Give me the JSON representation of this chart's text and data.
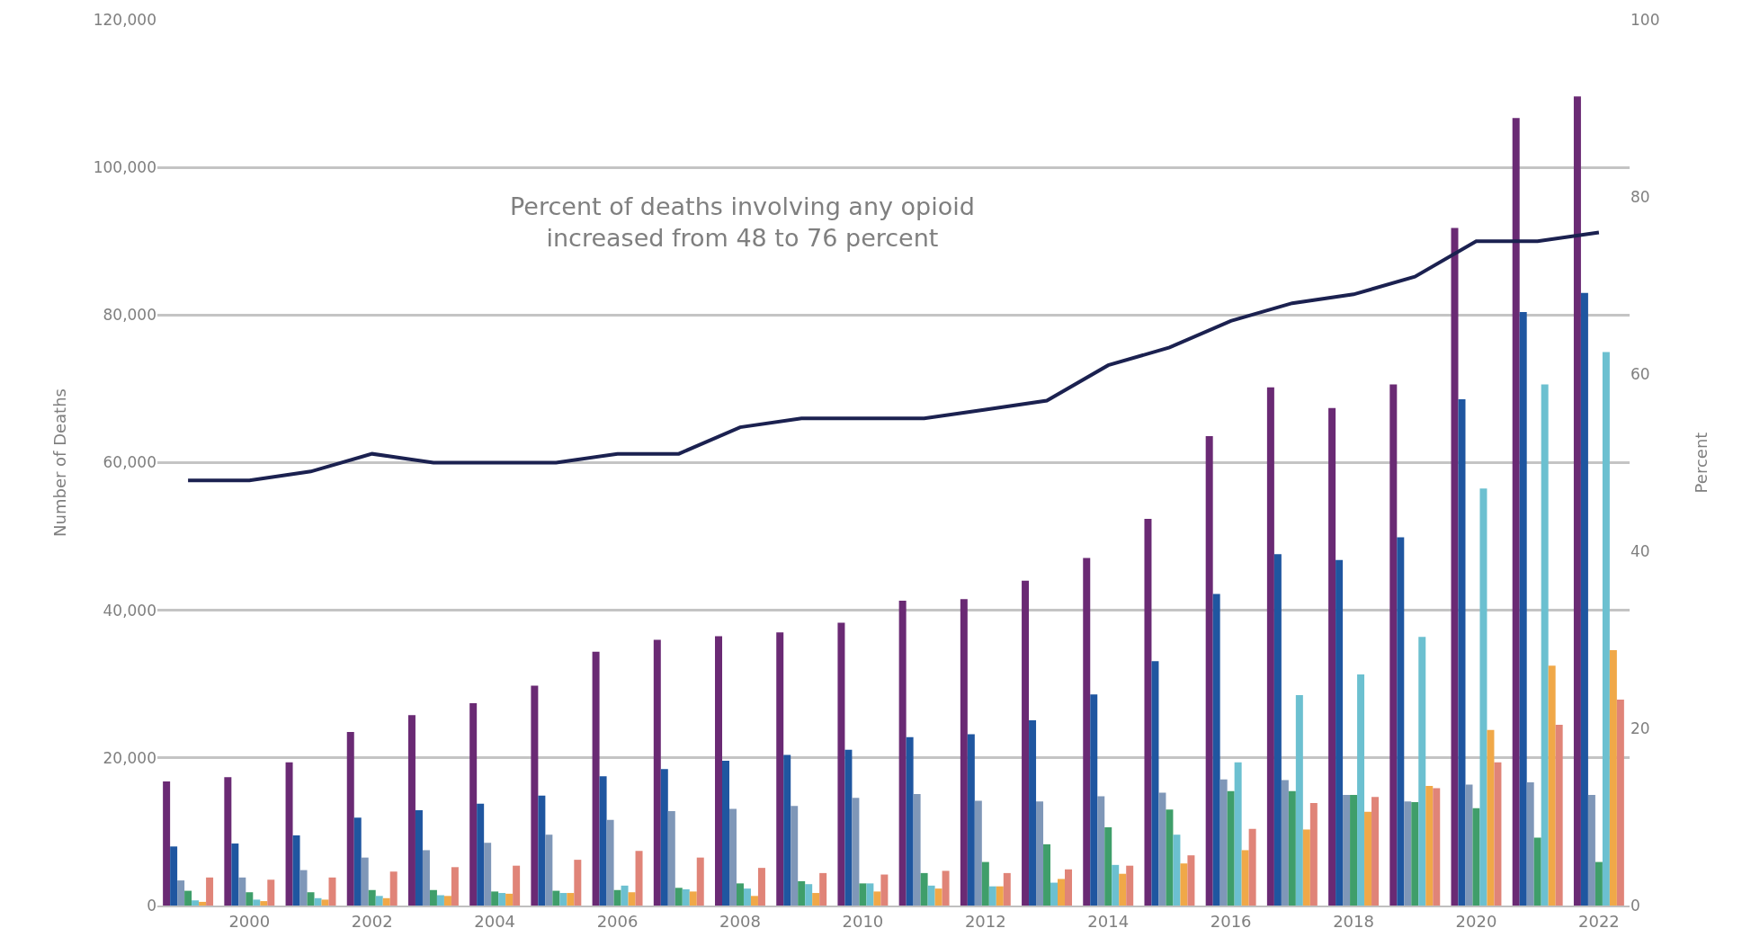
{
  "chart_data": {
    "type": "bar",
    "ylabel": "Number of Deaths",
    "y2label": "Percent",
    "annotations": [
      "Percent of deaths involving any opioid\nincreased from 48 to 76 percent"
    ],
    "x": [
      1999,
      2000,
      2001,
      2002,
      2003,
      2004,
      2005,
      2006,
      2007,
      2008,
      2009,
      2010,
      2011,
      2012,
      2013,
      2014,
      2015,
      2016,
      2017,
      2018,
      2019,
      2020,
      2021,
      2022
    ],
    "xlim": [
      1998.5,
      2022.5
    ],
    "xticks": [
      2000,
      2002,
      2004,
      2006,
      2008,
      2010,
      2012,
      2014,
      2016,
      2018,
      2020,
      2022
    ],
    "ylim": [
      0,
      120000
    ],
    "yticks": [
      0,
      {
        "value": 20000,
        "label": "20,000"
      },
      {
        "value": 40000,
        "label": "40,000"
      },
      {
        "value": 60000,
        "label": "60,000"
      },
      {
        "value": 80000,
        "label": "80,000"
      },
      {
        "value": 100000,
        "label": "100,000"
      },
      {
        "value": 120000,
        "label": "120,000"
      }
    ],
    "y2lim": [
      0,
      100
    ],
    "y2ticks": [
      0,
      20,
      40,
      60,
      80,
      100
    ],
    "grid": "y",
    "legend": false,
    "series": [
      {
        "color": "#6a2a74",
        "values": [
          16800,
          17400,
          19400,
          23500,
          25800,
          27400,
          29800,
          34400,
          36000,
          36500,
          37000,
          38300,
          41300,
          41500,
          44000,
          47100,
          52400,
          63600,
          70200,
          67400,
          70600,
          91800,
          106700,
          109600
        ]
      },
      {
        "color": "#1f56a0",
        "values": [
          8000,
          8400,
          9500,
          11900,
          12900,
          13800,
          14900,
          17500,
          18500,
          19600,
          20400,
          21100,
          22800,
          23200,
          25100,
          28600,
          33100,
          42200,
          47600,
          46800,
          49900,
          68600,
          80400,
          83000
        ]
      },
      {
        "color": "#7f97b8",
        "values": [
          3400,
          3800,
          4800,
          6500,
          7500,
          8500,
          9600,
          11600,
          12800,
          13100,
          13500,
          14600,
          15100,
          14200,
          14100,
          14800,
          15300,
          17100,
          17000,
          15000,
          14100,
          16400,
          16700,
          15000
        ]
      },
      {
        "color": "#3f9e6a",
        "values": [
          2000,
          1800,
          1800,
          2100,
          2100,
          1900,
          2000,
          2100,
          2400,
          3000,
          3300,
          3000,
          4400,
          5900,
          8300,
          10600,
          13000,
          15500,
          15500,
          15000,
          14000,
          13200,
          9200,
          5900
        ]
      },
      {
        "color": "#6cc0d0",
        "values": [
          700,
          800,
          1000,
          1300,
          1400,
          1700,
          1700,
          2700,
          2200,
          2300,
          2900,
          3000,
          2700,
          2600,
          3100,
          5500,
          9600,
          19400,
          28500,
          31300,
          36400,
          56500,
          70600,
          75000
        ]
      },
      {
        "color": "#f0a848",
        "values": [
          500,
          600,
          800,
          1000,
          1300,
          1600,
          1700,
          1800,
          1900,
          1300,
          1700,
          1900,
          2300,
          2600,
          3600,
          4300,
          5700,
          7500,
          10300,
          12700,
          16200,
          23800,
          32500,
          34600
        ]
      },
      {
        "color": "#e08478",
        "values": [
          3800,
          3500,
          3800,
          4600,
          5200,
          5400,
          6200,
          7400,
          6500,
          5100,
          4400,
          4200,
          4700,
          4400,
          4900,
          5400,
          6800,
          10400,
          13900,
          14700,
          15900,
          19400,
          24500,
          27900
        ]
      },
      {
        "type": "line",
        "axis": "y2",
        "color": "#1b2150",
        "marker": "none",
        "line_style": "solid",
        "values": [
          48,
          48,
          49,
          51,
          50,
          50,
          50,
          51,
          51,
          54,
          55,
          55,
          55,
          56,
          57,
          61,
          63,
          66,
          68,
          69,
          71,
          75,
          75,
          76
        ]
      }
    ]
  }
}
